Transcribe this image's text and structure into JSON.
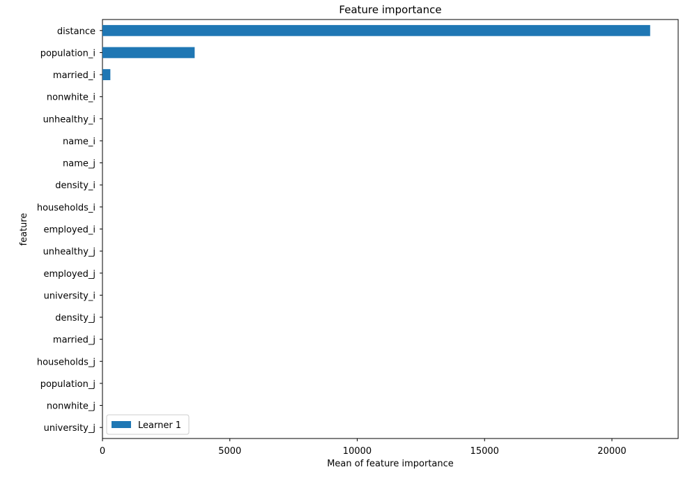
{
  "chart_data": {
    "type": "bar",
    "orientation": "horizontal",
    "title": "Feature importance",
    "xlabel": "Mean of feature importance",
    "ylabel": "feature",
    "xlim": [
      0,
      22600
    ],
    "xticks": [
      0,
      5000,
      10000,
      15000,
      20000
    ],
    "xtick_labels": [
      "0",
      "5000",
      "10000",
      "15000",
      "20000"
    ],
    "categories": [
      "distance",
      "population_i",
      "married_i",
      "nonwhite_i",
      "unhealthy_i",
      "name_i",
      "name_j",
      "density_i",
      "households_i",
      "employed_i",
      "unhealthy_j",
      "employed_j",
      "university_i",
      "density_j",
      "married_j",
      "households_j",
      "population_j",
      "nonwhite_j",
      "university_j"
    ],
    "series": [
      {
        "name": "Learner 1",
        "color": "#1f77b4",
        "values": [
          21500,
          3620,
          310,
          0,
          0,
          0,
          0,
          0,
          0,
          0,
          0,
          0,
          0,
          0,
          0,
          0,
          0,
          0,
          0
        ]
      }
    ],
    "legend": {
      "position": "lower-left",
      "entries": [
        "Learner 1"
      ]
    },
    "grid": false
  }
}
